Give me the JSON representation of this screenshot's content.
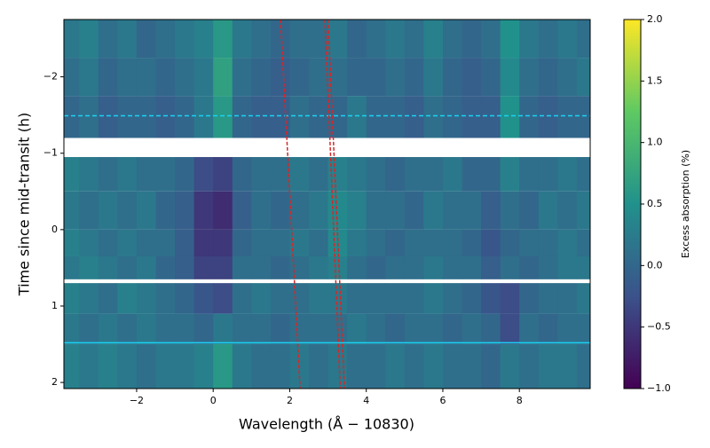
{
  "chart_data": {
    "type": "heatmap",
    "xlabel": "Wavelength (Å − 10830)",
    "ylabel": "Time since mid-transit (h)",
    "colorbar_label": "Excess absorption (%)",
    "xlim": [
      -3.9,
      9.85
    ],
    "ylim": [
      2.08,
      -2.75
    ],
    "xticks": [
      {
        "value": -2,
        "label": "−2"
      },
      0,
      2,
      4,
      6,
      8
    ],
    "yticks": [
      {
        "value": -2,
        "label": "−2"
      },
      {
        "value": -1,
        "label": "−1"
      },
      0,
      1,
      2
    ],
    "x_edges": [
      -4,
      -3.5,
      -3,
      -2.5,
      -2,
      -1.5,
      -1,
      -0.5,
      0,
      0.5,
      1,
      1.5,
      2,
      2.5,
      3,
      3.5,
      4,
      4.5,
      5,
      5.5,
      6,
      6.5,
      7,
      7.5,
      8,
      8.5,
      9,
      9.5,
      10
    ],
    "y_edges": [
      -2.75,
      -2.25,
      -1.75,
      -1.2,
      -0.95,
      -0.5,
      0,
      0.35,
      0.65,
      0.7,
      1.1,
      1.5,
      2.08
    ],
    "z": [
      [
        0.2,
        0.3,
        0.1,
        0.2,
        0.0,
        0.1,
        0.2,
        0.3,
        0.6,
        0.2,
        0.1,
        0.0,
        0.1,
        0.1,
        0.2,
        0.0,
        0.1,
        0.2,
        0.1,
        0.3,
        0.1,
        0.0,
        0.1,
        0.5,
        0.2,
        0.1,
        0.2,
        0.1
      ],
      [
        0.1,
        0.2,
        0.0,
        0.1,
        0.1,
        0.0,
        0.1,
        0.2,
        0.7,
        0.1,
        0.0,
        -0.1,
        0.0,
        0.1,
        0.1,
        0.0,
        0.0,
        0.1,
        0.0,
        0.2,
        0.0,
        -0.1,
        0.0,
        0.4,
        0.1,
        0.0,
        0.1,
        0.2
      ],
      [
        0.0,
        0.1,
        -0.1,
        0.0,
        0.0,
        -0.1,
        0.0,
        0.2,
        0.6,
        0.0,
        -0.1,
        -0.1,
        0.1,
        0.0,
        0.0,
        0.2,
        0.0,
        0.0,
        -0.1,
        0.1,
        0.0,
        -0.1,
        -0.1,
        0.5,
        0.0,
        -0.1,
        0.0,
        0.0
      ],
      null,
      [
        0.3,
        0.2,
        0.1,
        0.2,
        0.1,
        0.1,
        0.0,
        -0.3,
        -0.4,
        0.0,
        0.1,
        0.1,
        0.2,
        0.1,
        0.3,
        0.2,
        0.1,
        0.0,
        0.1,
        0.1,
        0.2,
        0.0,
        0.0,
        0.3,
        0.1,
        0.1,
        0.2,
        0.1
      ],
      [
        0.2,
        0.1,
        0.2,
        0.1,
        0.2,
        0.0,
        -0.1,
        -0.5,
        -0.6,
        -0.1,
        0.1,
        0.0,
        0.1,
        0.2,
        0.4,
        0.3,
        0.1,
        0.1,
        0.0,
        0.2,
        0.1,
        0.1,
        -0.1,
        0.1,
        0.0,
        0.2,
        0.1,
        0.2
      ],
      [
        0.3,
        0.2,
        0.1,
        0.2,
        0.1,
        0.1,
        -0.1,
        -0.5,
        -0.5,
        0.0,
        0.1,
        0.1,
        0.2,
        0.1,
        0.4,
        0.2,
        0.1,
        0.0,
        0.1,
        0.1,
        0.1,
        0.0,
        -0.2,
        0.0,
        0.1,
        0.1,
        0.2,
        0.1
      ],
      [
        0.2,
        0.3,
        0.2,
        0.1,
        0.2,
        0.0,
        -0.1,
        -0.4,
        -0.4,
        0.1,
        0.1,
        0.0,
        0.1,
        0.2,
        0.3,
        0.1,
        0.0,
        0.1,
        0.1,
        0.2,
        0.1,
        0.1,
        -0.1,
        0.1,
        0.0,
        0.1,
        0.2,
        0.2
      ],
      null,
      [
        0.3,
        0.2,
        0.1,
        0.3,
        0.2,
        0.1,
        0.0,
        -0.2,
        -0.3,
        0.1,
        0.2,
        0.1,
        0.1,
        0.2,
        0.2,
        0.1,
        0.1,
        0.1,
        0.1,
        0.2,
        0.1,
        0.0,
        -0.2,
        -0.3,
        0.0,
        0.1,
        0.1,
        0.2
      ],
      [
        0.2,
        0.1,
        0.2,
        0.1,
        0.2,
        0.1,
        0.1,
        0.0,
        0.2,
        0.1,
        0.1,
        0.0,
        0.1,
        0.1,
        0.1,
        0.2,
        0.1,
        0.0,
        0.1,
        0.1,
        0.0,
        0.1,
        0.0,
        -0.3,
        0.1,
        0.0,
        0.1,
        0.1
      ],
      [
        0.3,
        0.2,
        0.3,
        0.2,
        0.1,
        0.2,
        0.2,
        0.3,
        0.6,
        0.2,
        0.1,
        0.1,
        0.2,
        0.1,
        0.2,
        0.1,
        0.1,
        0.2,
        0.1,
        0.2,
        0.1,
        0.1,
        0.0,
        0.2,
        0.1,
        0.2,
        0.2,
        0.1
      ]
    ],
    "colormap": [
      "#440154",
      "#3b528b",
      "#21918c",
      "#5ec962",
      "#fde725"
    ],
    "clim": [
      -1,
      2
    ],
    "cticks": [
      {
        "value": -1,
        "label": "−1.0"
      },
      {
        "value": -0.5,
        "label": "−0.5"
      },
      {
        "value": 0,
        "label": "0.0"
      },
      {
        "value": 0.5,
        "label": "0.5"
      },
      {
        "value": 1,
        "label": "1.0"
      },
      {
        "value": 1.5,
        "label": "1.5"
      },
      {
        "value": 2,
        "label": "2.0"
      }
    ],
    "tracks": [
      {
        "color": "#d62728",
        "x": [
          1.76,
          2.27
        ],
        "y": [
          -2.75,
          2.08
        ]
      },
      {
        "color": "#d62728",
        "x": [
          2.92,
          3.32
        ],
        "y": [
          -2.75,
          2.08
        ]
      },
      {
        "color": "#d62728",
        "x": [
          3.0,
          3.43
        ],
        "y": [
          -2.75,
          2.08
        ]
      }
    ],
    "hlines": [
      {
        "y": -1.49,
        "color": "#19d3f3",
        "style": "dashed"
      },
      {
        "y": 1.48,
        "color": "#19d3f3",
        "style": "solid"
      }
    ]
  }
}
